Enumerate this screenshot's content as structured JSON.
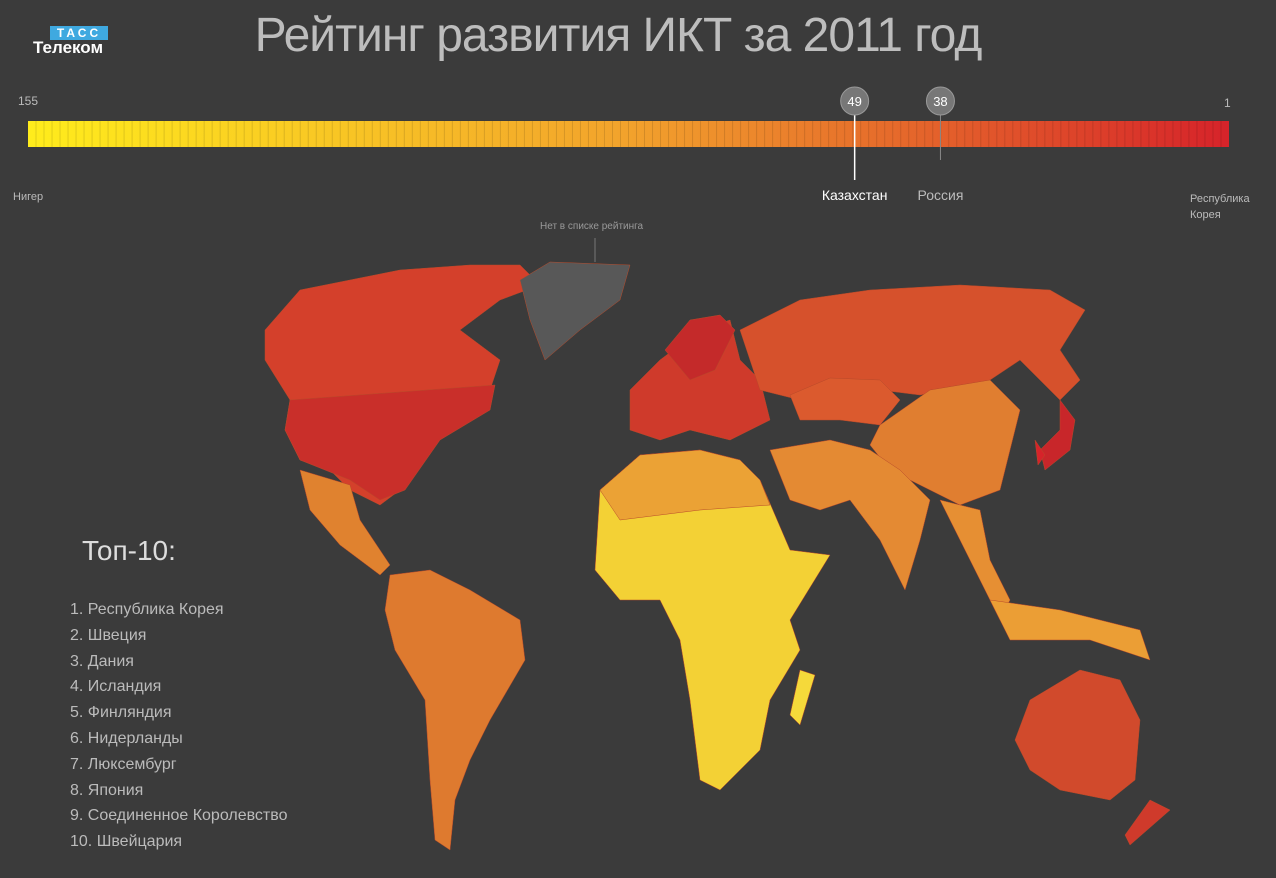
{
  "header": {
    "logo_top": "ТАСС",
    "logo_bottom": "Телеком",
    "title": "Рейтинг развития ИКТ за 2011 год"
  },
  "scale": {
    "min_rank": 155,
    "max_rank": 1,
    "min_label": "Нигер",
    "max_label": "Республика Корея",
    "markers": [
      {
        "rank": 49,
        "label": "Казахстан"
      },
      {
        "rank": 38,
        "label": "Россия"
      }
    ]
  },
  "map": {
    "unranked_label": "Нет в списке рейтинга"
  },
  "top10": {
    "title": "Топ-10:",
    "items": [
      "1. Республика Корея",
      "2. Швеция",
      "3. Дания",
      "4. Исландия",
      "5. Финляндия",
      "6. Нидерланды",
      "7. Люксембург",
      "8. Япония",
      "9. Соединенное Королевство",
      "10. Швейцария"
    ]
  }
}
